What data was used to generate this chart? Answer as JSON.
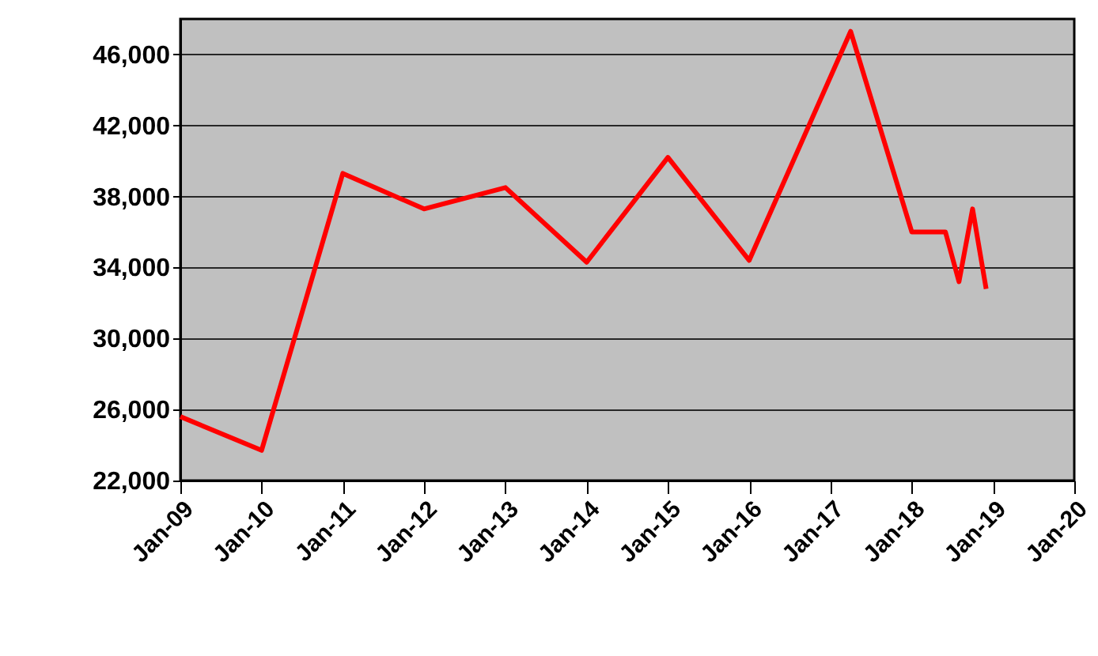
{
  "chart_data": {
    "type": "line",
    "x": [
      "2009-01",
      "2010-01",
      "2011-01",
      "2012-01",
      "2013-01",
      "2014-01",
      "2015-01",
      "2016-01",
      "2017-04",
      "2018-01",
      "2018-06",
      "2018-08",
      "2018-10",
      "2018-12"
    ],
    "series": [
      {
        "color": "#ff0000",
        "values": [
          25600,
          23700,
          39300,
          37300,
          38500,
          34300,
          40200,
          34400,
          47300,
          36000,
          36000,
          33200,
          37300,
          32800
        ]
      }
    ],
    "xlim": [
      "2009-01",
      "2020-01"
    ],
    "xticks": [
      {
        "value": "2009-01",
        "label": "Jan-09"
      },
      {
        "value": "2010-01",
        "label": "Jan-10"
      },
      {
        "value": "2011-01",
        "label": "Jan-11"
      },
      {
        "value": "2012-01",
        "label": "Jan-12"
      },
      {
        "value": "2013-01",
        "label": "Jan-13"
      },
      {
        "value": "2014-01",
        "label": "Jan-14"
      },
      {
        "value": "2015-01",
        "label": "Jan-15"
      },
      {
        "value": "2016-01",
        "label": "Jan-16"
      },
      {
        "value": "2017-01",
        "label": "Jan-17"
      },
      {
        "value": "2018-01",
        "label": "Jan-18"
      },
      {
        "value": "2019-01",
        "label": "Jan-19"
      },
      {
        "value": "2020-01",
        "label": "Jan-20"
      }
    ],
    "ylim": [
      22000,
      48000
    ],
    "yticks": [
      {
        "value": 22000,
        "label": "22,000"
      },
      {
        "value": 26000,
        "label": "26,000"
      },
      {
        "value": 30000,
        "label": "30,000"
      },
      {
        "value": 34000,
        "label": "34,000"
      },
      {
        "value": 38000,
        "label": "38,000"
      },
      {
        "value": 42000,
        "label": "42,000"
      },
      {
        "value": 46000,
        "label": "46,000"
      }
    ],
    "grid": "y",
    "marker": "none",
    "line_style": "solid"
  }
}
